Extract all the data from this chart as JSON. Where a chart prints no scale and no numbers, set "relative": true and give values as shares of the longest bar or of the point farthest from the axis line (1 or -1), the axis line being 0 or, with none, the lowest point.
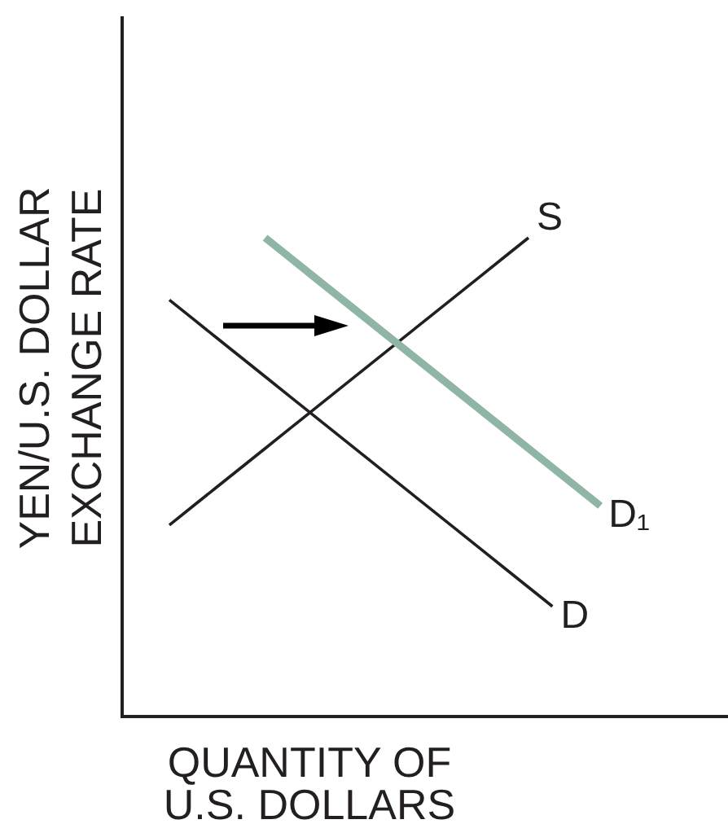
{
  "chart_data": {
    "type": "line",
    "relative": true,
    "xlabel": "QUANTITY OF\nU.S. DOLLARS",
    "ylabel": "YEN/U.S. DOLLAR\nEXCHANGE RATE",
    "line_style": "solid",
    "categories": [
      null,
      null,
      null,
      null,
      null,
      null,
      null,
      null,
      null,
      null,
      null,
      null,
      null,
      null,
      null,
      null,
      null,
      null,
      null
    ],
    "series": [
      {
        "name": "S",
        "color": "#231f20",
        "values": [
          0.4,
          0.44,
          0.48,
          0.52,
          0.56,
          0.6,
          0.64,
          0.68,
          0.72,
          0.76,
          0.8,
          0.84,
          0.88,
          0.92,
          0.96,
          1.0,
          null,
          null,
          null
        ]
      },
      {
        "name": "D",
        "color": "#231f20",
        "values": [
          0.87,
          0.83,
          0.79,
          0.75,
          0.71,
          0.67,
          0.63,
          0.59,
          0.55,
          0.51,
          0.47,
          0.43,
          0.39,
          0.35,
          0.31,
          0.27,
          0.23,
          null,
          null
        ]
      },
      {
        "name": "D₁",
        "color": "#8fb5a5",
        "values": [
          null,
          null,
          null,
          null,
          1.0,
          0.96,
          0.92,
          0.88,
          0.84,
          0.8,
          0.76,
          0.72,
          0.68,
          0.64,
          0.6,
          0.56,
          0.52,
          0.48,
          0.44
        ]
      }
    ]
  }
}
